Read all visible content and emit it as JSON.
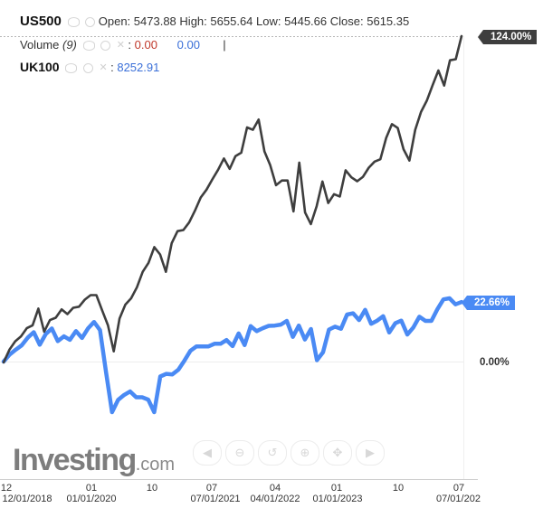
{
  "legend": {
    "us500": {
      "symbol": "US500",
      "open_label": "Open:",
      "open": "5473.88",
      "high_label": "High:",
      "high": "5655.64",
      "low_label": "Low:",
      "low": "5445.66",
      "close_label": "Close:",
      "close": "5615.35"
    },
    "volume": {
      "label": "Volume",
      "param": "(9)",
      "value1": "0.00",
      "value2": "0.00",
      "cursor": "|"
    },
    "uk100": {
      "symbol": "UK100",
      "value": "8252.91"
    }
  },
  "price_tags": {
    "us500": "124.00%",
    "uk100": "22.66%",
    "zero": "0.00%"
  },
  "logo": {
    "brand": "Investing",
    "suffix": ".com"
  },
  "nav_icons": [
    "step-back-icon",
    "zoom-out-icon",
    "reset-icon",
    "zoom-in-icon",
    "pan-icon",
    "step-forward-icon"
  ],
  "colors": {
    "us500": "#3e3e3e",
    "uk100": "#4a8af4",
    "grid": "#e6e6e6"
  },
  "chart_data": {
    "type": "line",
    "x_start": "2017-12",
    "x_end": "2024-07",
    "x_ticks_top": [
      "12",
      "01",
      "10",
      "07",
      "04",
      "01",
      "10",
      "07"
    ],
    "x_ticks_bottom": [
      "12/01/2018",
      "01/01/2020",
      "07/01/2021",
      "04/01/2022",
      "01/01/2023",
      "07/01/202"
    ],
    "ylim": [
      -25,
      124
    ],
    "y_unit": "%",
    "grid": false,
    "legend_position": "top-left",
    "series": [
      {
        "name": "US500",
        "values": [
          -0.3,
          4.5,
          7.7,
          9.6,
          12.7,
          13.8,
          20.2,
          11.4,
          15.8,
          16.7,
          19.9,
          18.1,
          20.5,
          20.9,
          23.6,
          25.3,
          25.3,
          19.5,
          13.8,
          3.9,
          16.4,
          21.7,
          24.1,
          28.3,
          34.2,
          37.6,
          43.6,
          40.8,
          34.2,
          45.1,
          49.7,
          50.1,
          53.0,
          57.5,
          62.5,
          65.5,
          69.4,
          73.1,
          77.4,
          73.4,
          78.3,
          79.6,
          89.2,
          88.3,
          92.2,
          80.1,
          74.8,
          67.2,
          69.0,
          69.0,
          57.2,
          75.8,
          56.8,
          52.4,
          59.2,
          68.6,
          60.4,
          63.8,
          62.9,
          72.9,
          70.2,
          68.7,
          70.4,
          73.9,
          76.2,
          77.1,
          85.2,
          90.5,
          89.0,
          80.9,
          76.6,
          88.3,
          95.1,
          99.4,
          105.3,
          110.9,
          105.2,
          114.8,
          115.2,
          124.0
        ]
      },
      {
        "name": "UK100",
        "values": [
          0.0,
          2.7,
          4.5,
          6.2,
          9.1,
          11.2,
          6.4,
          10.5,
          12.6,
          7.8,
          9.6,
          8.3,
          11.6,
          9.0,
          12.6,
          15.1,
          12.0,
          -4.1,
          -19.3,
          -14.6,
          -12.7,
          -11.4,
          -13.6,
          -13.6,
          -14.5,
          -19.3,
          -5.7,
          -4.7,
          -4.9,
          -3.1,
          0.3,
          4.1,
          5.8,
          5.8,
          5.8,
          6.8,
          6.8,
          8.2,
          5.9,
          10.7,
          6.3,
          13.5,
          11.6,
          12.7,
          13.6,
          13.7,
          14.1,
          15.5,
          9.4,
          13.7,
          8.4,
          12.4,
          0.5,
          3.5,
          12.2,
          13.3,
          12.5,
          17.9,
          18.4,
          15.8,
          19.7,
          14.4,
          15.6,
          17.3,
          11.1,
          14.6,
          15.6,
          10.3,
          13.0,
          17.1,
          15.5,
          15.5,
          20.0,
          23.7,
          24.1,
          21.8,
          22.7
        ]
      }
    ]
  }
}
